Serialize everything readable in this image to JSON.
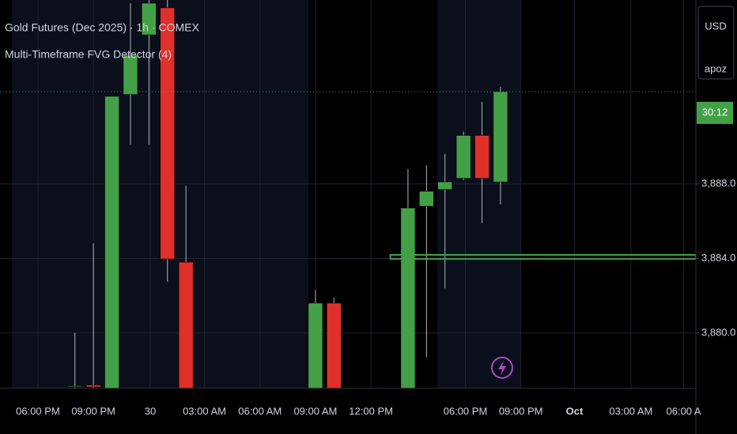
{
  "chart_data": {
    "type": "candlestick",
    "title": "Gold Futures (Dec 2025) · 1h · COMEX",
    "subtitle": "Multi-Timeframe FVG Detector (4)",
    "currency": "USD",
    "user": "apoz",
    "countdown": "30:12",
    "x": [
      2,
      3,
      4,
      5,
      6,
      7,
      8,
      15,
      16,
      20,
      21,
      22,
      23,
      24,
      25
    ],
    "open": [
      3877.1,
      3877.2,
      3876.5,
      3892.8,
      3896.0,
      3897.45,
      3883.8,
      3876.5,
      3881.6,
      3876.5,
      3886.8,
      3887.7,
      3888.3,
      3890.6,
      3888.1
    ],
    "high": [
      3880.0,
      3884.8,
      3892.7,
      3897.7,
      3898.5,
      3897.9,
      3887.9,
      3882.3,
      3881.9,
      3888.8,
      3889.0,
      3889.6,
      3890.8,
      3892.4,
      3893.2
    ],
    "low": [
      3876.8,
      3876.8,
      3876.5,
      3890.1,
      3890.1,
      3882.75,
      3876.5,
      3876.5,
      3876.5,
      3876.5,
      3878.7,
      3882.4,
      3888.2,
      3885.9,
      3886.9
    ],
    "close": [
      3877.15,
      3877.1,
      3892.7,
      3894.9,
      3897.7,
      3883.97,
      3876.5,
      3881.6,
      3876.5,
      3886.7,
      3887.6,
      3888.1,
      3890.6,
      3888.3,
      3892.95
    ],
    "up_color": "#43a047",
    "down_color": "#e0302a",
    "last_price": 3892.95,
    "fvg_zone": {
      "x_start": 19.05,
      "low": 3883.97,
      "high": 3884.19,
      "color": "#43a047"
    },
    "xlim": [
      -2.05,
      35.56
    ],
    "xticks": [
      {
        "value": 0,
        "label": "06:00 PM"
      },
      {
        "value": 3,
        "label": "09:00 PM"
      },
      {
        "value": 6.07,
        "label": "30"
      },
      {
        "value": 9,
        "label": "03:00 AM"
      },
      {
        "value": 12,
        "label": "06:00 AM"
      },
      {
        "value": 15,
        "label": "09:00 AM"
      },
      {
        "value": 18,
        "label": "12:00 PM"
      },
      {
        "value": 23.1,
        "label": "06:00 PM"
      },
      {
        "value": 26.1,
        "label": "09:00 PM"
      },
      {
        "value": 29,
        "label": "Oct"
      },
      {
        "value": 32.05,
        "label": "03:00 AM"
      },
      {
        "value": 34.9,
        "label": "06:00 A"
      }
    ],
    "ylim": [
      3877.03,
      3897.87
    ],
    "yticks": [
      {
        "value": 3880,
        "label": "3,880.0"
      },
      {
        "value": 3884,
        "label": "3,884.0"
      },
      {
        "value": 3888,
        "label": "3,888.0"
      }
    ],
    "grid": true
  }
}
